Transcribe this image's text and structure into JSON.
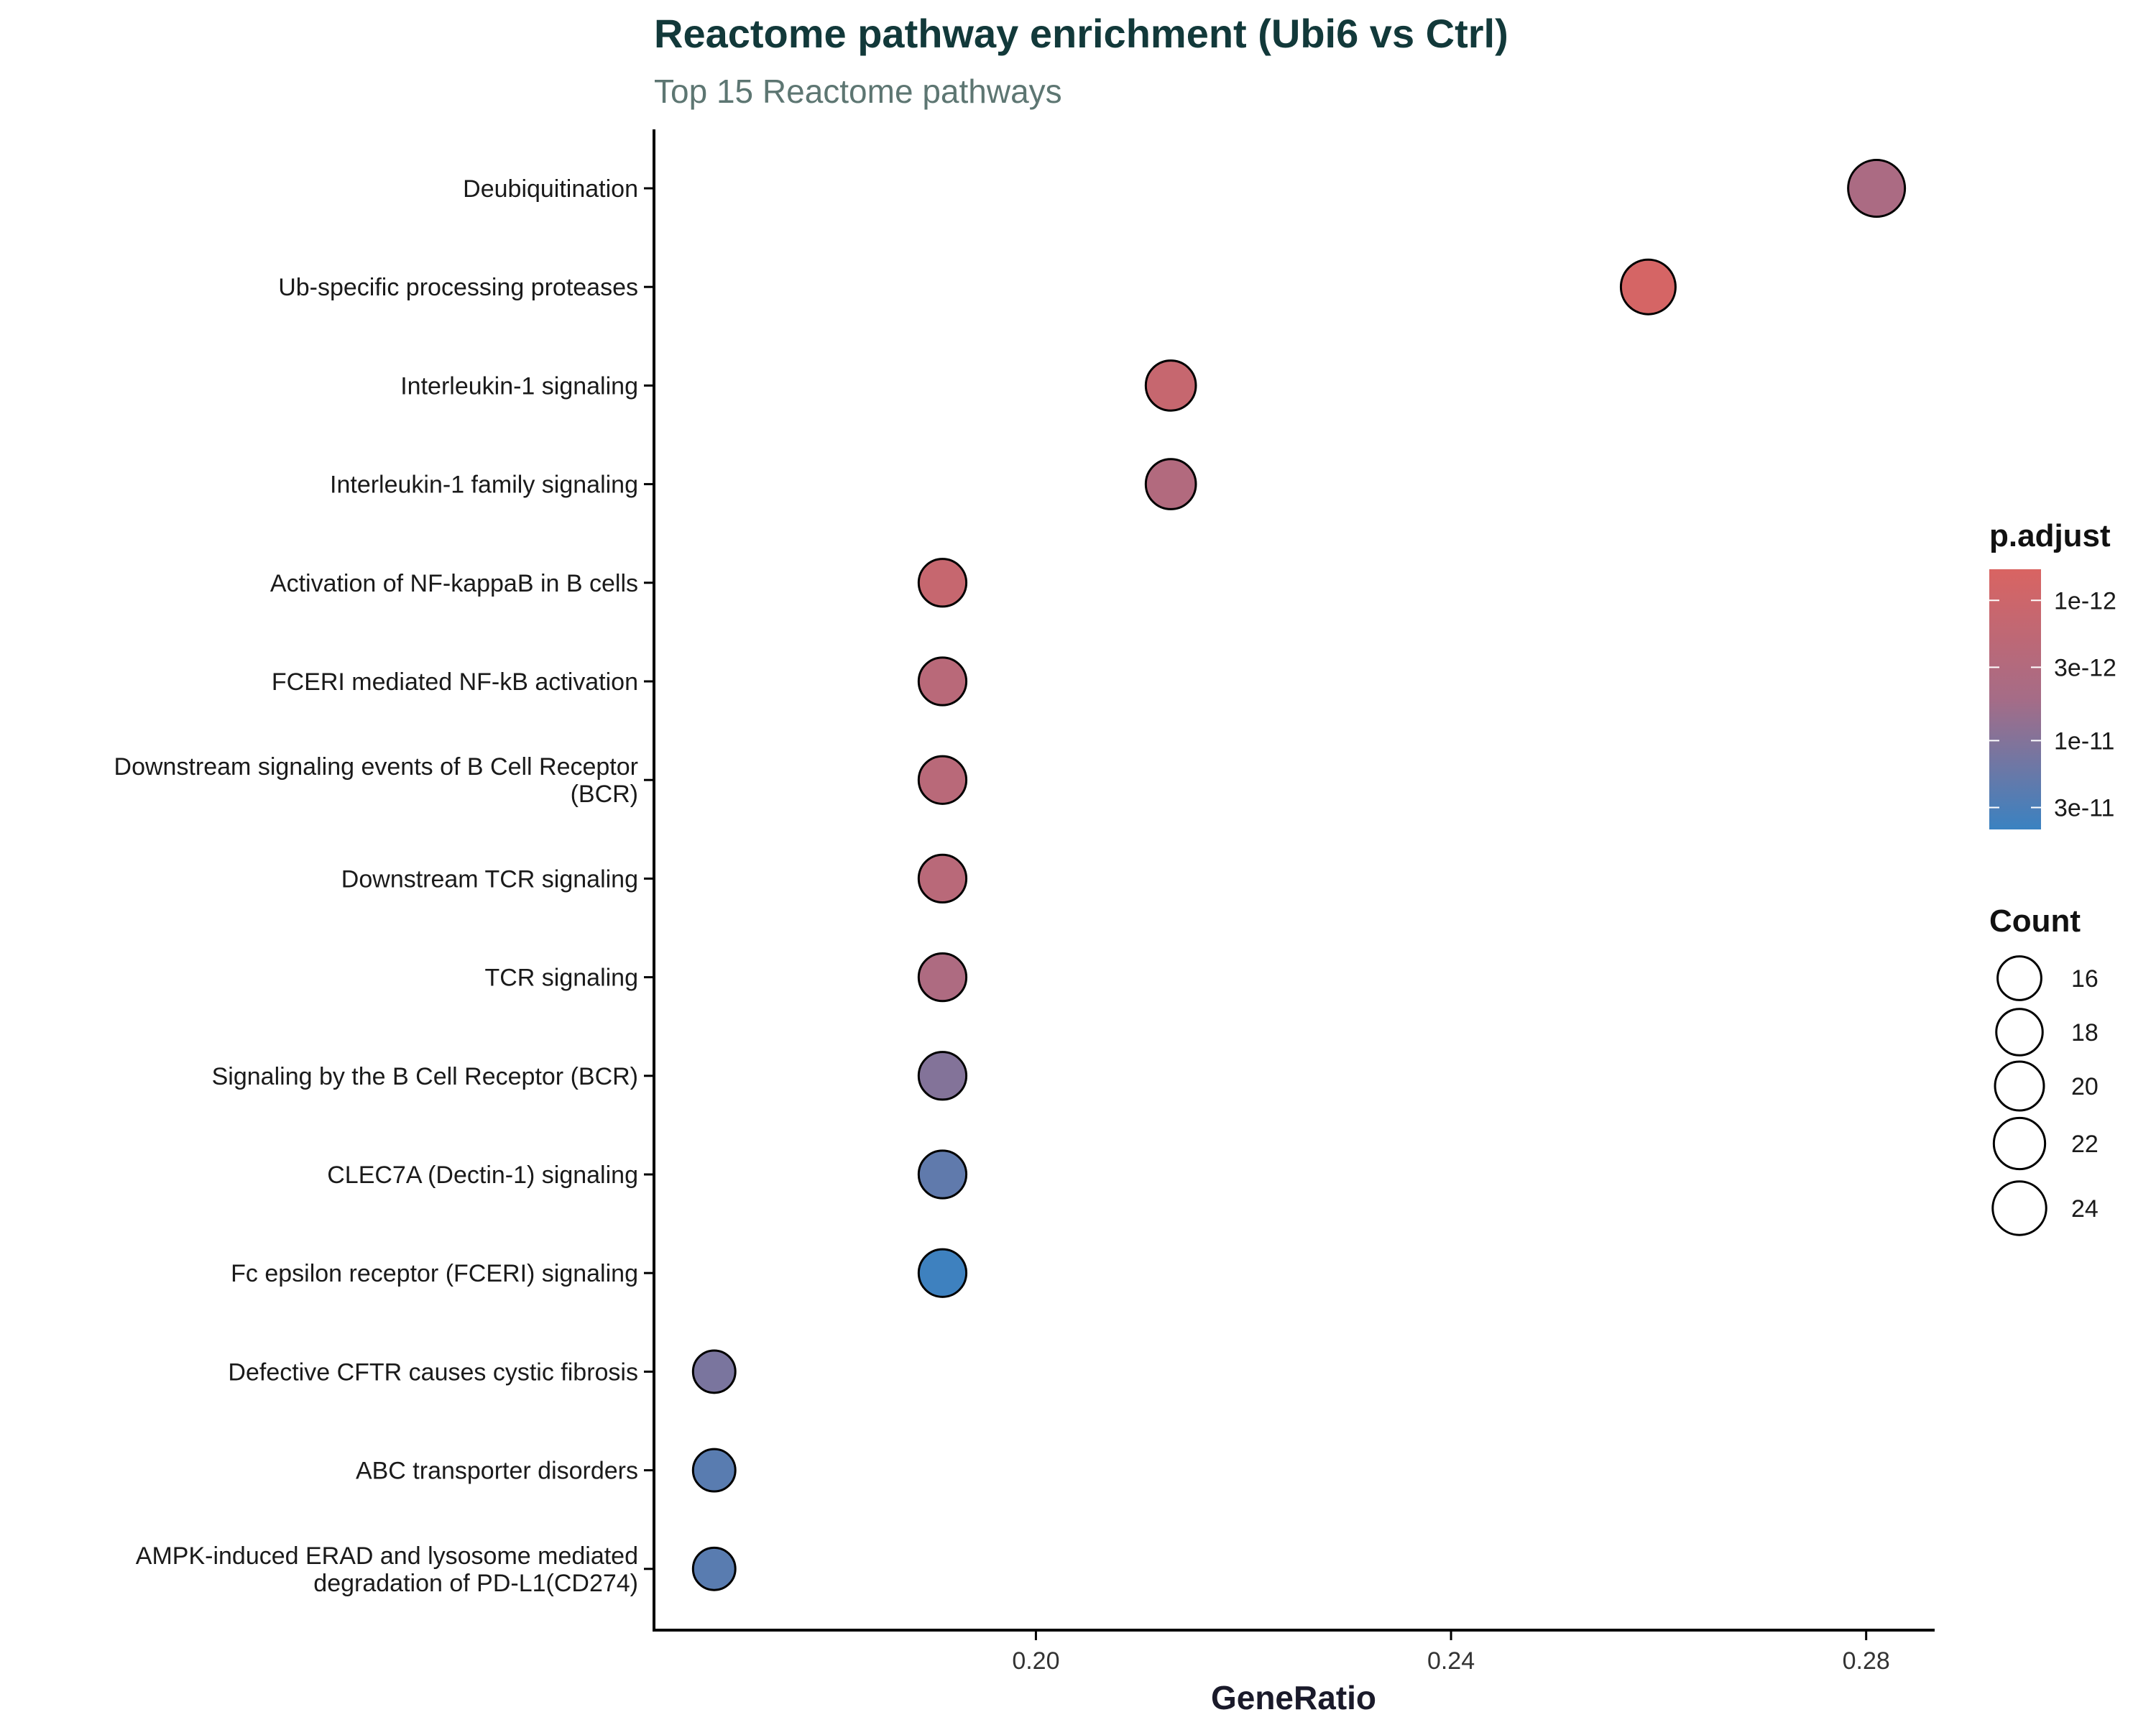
{
  "chart_data": {
    "type": "scatter",
    "title": "Reactome pathway enrichment (Ubi6 vs Ctrl)",
    "subtitle": "Top 15 Reactome pathways",
    "xlabel": "GeneRatio",
    "ylabel": "",
    "xlim": [
      0.1632,
      0.2866
    ],
    "x_ticks": [
      0.2,
      0.24,
      0.28
    ],
    "x_tick_labels": [
      "0.20",
      "0.24",
      "0.28"
    ],
    "grid": false,
    "legend_position": "right",
    "color_legend": {
      "title": "p.adjust",
      "scale": "log",
      "low_color": "#d96462",
      "high_color": "#3a82c1",
      "range": [
        6e-13,
        4.3e-11
      ],
      "ticks": [
        1e-12,
        3e-12,
        1e-11,
        3e-11
      ],
      "tick_labels": [
        "1e-12",
        "3e-12",
        "1e-11",
        "3e-11"
      ]
    },
    "size_legend": {
      "title": "Count",
      "values": [
        16,
        18,
        20,
        22,
        24
      ],
      "labels": [
        "16",
        "18",
        "20",
        "22",
        "24"
      ]
    },
    "points": [
      {
        "pathway": [
          "Deubiquitination"
        ],
        "gene_ratio": 0.281,
        "count": 27,
        "p_adjust": 4e-12
      },
      {
        "pathway": [
          "Ub-specific processing proteases"
        ],
        "gene_ratio": 0.259,
        "count": 25,
        "p_adjust": 7e-13
      },
      {
        "pathway": [
          "Interleukin-1 signaling"
        ],
        "gene_ratio": 0.213,
        "count": 21,
        "p_adjust": 1.3e-12
      },
      {
        "pathway": [
          "Interleukin-1 family signaling"
        ],
        "gene_ratio": 0.213,
        "count": 21,
        "p_adjust": 3e-12
      },
      {
        "pathway": [
          "Activation of NF-kappaB in B cells"
        ],
        "gene_ratio": 0.191,
        "count": 19,
        "p_adjust": 1.3e-12
      },
      {
        "pathway": [
          "FCERI mediated NF-kB activation"
        ],
        "gene_ratio": 0.191,
        "count": 19,
        "p_adjust": 2.2e-12
      },
      {
        "pathway": [
          "Downstream signaling events of B Cell Receptor",
          "(BCR)"
        ],
        "gene_ratio": 0.191,
        "count": 19,
        "p_adjust": 2.2e-12
      },
      {
        "pathway": [
          "Downstream TCR signaling"
        ],
        "gene_ratio": 0.191,
        "count": 19,
        "p_adjust": 2.2e-12
      },
      {
        "pathway": [
          "TCR signaling"
        ],
        "gene_ratio": 0.191,
        "count": 19,
        "p_adjust": 3.5e-12
      },
      {
        "pathway": [
          "Signaling by the B Cell Receptor (BCR)"
        ],
        "gene_ratio": 0.191,
        "count": 19,
        "p_adjust": 1e-11
      },
      {
        "pathway": [
          "CLEC7A (Dectin-1) signaling"
        ],
        "gene_ratio": 0.191,
        "count": 19,
        "p_adjust": 2e-11
      },
      {
        "pathway": [
          "Fc epsilon receptor (FCERI) signaling"
        ],
        "gene_ratio": 0.191,
        "count": 19,
        "p_adjust": 4e-11
      },
      {
        "pathway": [
          "Defective CFTR causes cystic fibrosis"
        ],
        "gene_ratio": 0.169,
        "count": 15,
        "p_adjust": 1.2e-11
      },
      {
        "pathway": [
          "ABC transporter disorders"
        ],
        "gene_ratio": 0.169,
        "count": 15,
        "p_adjust": 2.3e-11
      },
      {
        "pathway": [
          "AMPK-induced ERAD and lysosome mediated",
          "degradation of PD-L1(CD274)"
        ],
        "gene_ratio": 0.169,
        "count": 15,
        "p_adjust": 2.3e-11
      }
    ]
  }
}
